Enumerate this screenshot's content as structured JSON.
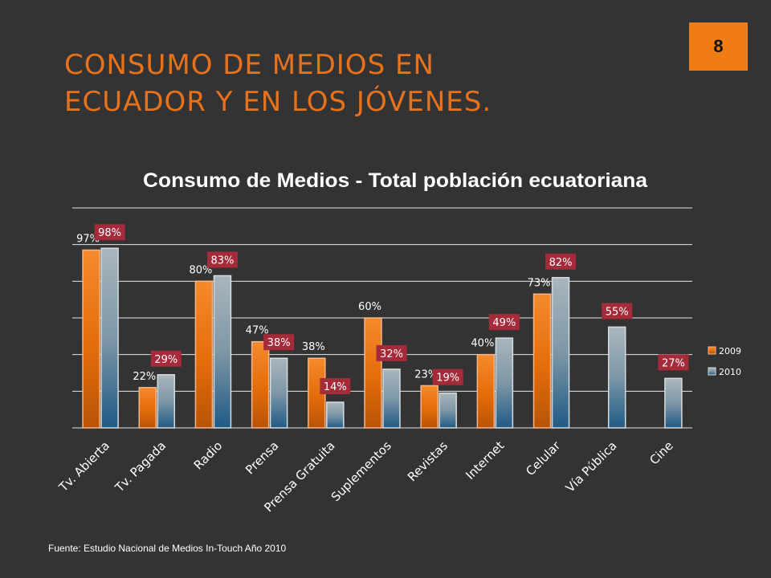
{
  "slide": {
    "title_line1": "CONSUMO DE MEDIOS EN",
    "title_line2": "ECUADOR Y EN LOS JÓVENES.",
    "page_number": "8",
    "source": "Fuente: Estudio Nacional de Medios In-Touch Año 2010"
  },
  "colors": {
    "accent": "#E8711B",
    "series_2009": "#E46C0A",
    "series_2010": "#5B8FA8",
    "label_box": "#A52A3A",
    "background": "#333333"
  },
  "chart_data": {
    "type": "bar",
    "title": "Consumo de Medios - Total población ecuatoriana",
    "categories": [
      "Tv. Abierta",
      "Tv. Pagada",
      "Radio",
      "Prensa",
      "Prensa Gratuita",
      "Suplementos",
      "Revistas",
      "Internet",
      "Celular",
      "Vía Pública",
      "Cine"
    ],
    "series": [
      {
        "name": "2009",
        "values": [
          97,
          22,
          80,
          47,
          38,
          60,
          23,
          40,
          73,
          null,
          null
        ],
        "labels": [
          "97%",
          "22%",
          "80%",
          "47%",
          "38%",
          "60%",
          "23%",
          "40%",
          "73%",
          "",
          ""
        ]
      },
      {
        "name": "2010",
        "values": [
          98,
          29,
          83,
          38,
          14,
          32,
          19,
          49,
          82,
          55,
          27
        ],
        "labels": [
          "98%",
          "29%",
          "83%",
          "38%",
          "14%",
          "32%",
          "19%",
          "49%",
          "82%",
          "55%",
          "27%"
        ]
      }
    ],
    "ylim": [
      0,
      120
    ],
    "grid": true,
    "legend": "right"
  }
}
